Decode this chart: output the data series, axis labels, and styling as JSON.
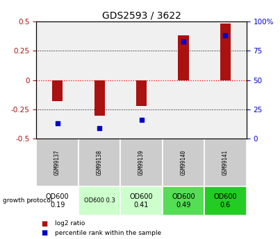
{
  "title": "GDS2593 / 3622",
  "samples": [
    "GSM99137",
    "GSM99138",
    "GSM99139",
    "GSM99140",
    "GSM99141"
  ],
  "log2_ratio": [
    -0.18,
    -0.305,
    -0.22,
    0.38,
    0.48
  ],
  "percentile_rank": [
    13,
    9,
    16,
    83,
    88
  ],
  "ylim_left": [
    -0.5,
    0.5
  ],
  "ylim_right": [
    0,
    100
  ],
  "yticks_left": [
    -0.5,
    -0.25,
    0,
    0.25,
    0.5
  ],
  "yticks_right": [
    0,
    25,
    50,
    75,
    100
  ],
  "ytick_labels_left": [
    "-0.5",
    "-0.25",
    "0",
    "0.25",
    "0.5"
  ],
  "ytick_labels_right": [
    "0",
    "25",
    "50",
    "75",
    "100%"
  ],
  "bar_color": "#aa1111",
  "dot_color": "#0000cc",
  "protocol_labels": [
    "OD600\n0.19",
    "OD600 0.3",
    "OD600\n0.41",
    "OD600\n0.49",
    "OD600\n0.6"
  ],
  "protocol_colors": [
    "#ffffff",
    "#ccffcc",
    "#ccffcc",
    "#55dd55",
    "#22cc22"
  ],
  "protocol_fontsize": [
    7.0,
    6.0,
    7.0,
    7.0,
    7.0
  ],
  "header_color": "#cccccc",
  "bg_color": "#f0f0f0",
  "bar_width": 0.25,
  "dot_size": 4
}
